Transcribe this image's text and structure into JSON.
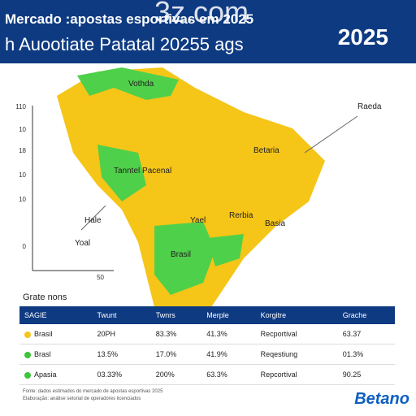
{
  "header": {
    "title": "Mercado :apostas esportivas em 2025",
    "subtitle": "h Auootiate Patatal 20255 ags",
    "badge": "2025",
    "watermark": "3z.com"
  },
  "map_labels": [
    "Vothda",
    "Raeda",
    "Betaria",
    "Tanntel Pacenal",
    "Hale",
    "Yoal",
    "Yael",
    "Rerbia",
    "Basia",
    "Brasil"
  ],
  "axis_ticks": [
    "110",
    "10",
    "18",
    "10",
    "10",
    "0",
    "50"
  ],
  "section": "Grate nons",
  "table": {
    "header": [
      "SAGIE",
      "Twunt",
      "Twnrs",
      "Merple",
      "Korgitre",
      "Grache"
    ],
    "rows": [
      [
        "Brasil",
        "20PH",
        "83.3%",
        "41.3%",
        "Recportival",
        "63.37"
      ],
      [
        "Brasl",
        "13.5%",
        "17.0%",
        "41.9%",
        "Reqestiung",
        "01.3%"
      ],
      [
        "Apasia",
        "03.33%",
        "200%",
        "63.3%",
        "Repcortival",
        "90.25"
      ]
    ]
  },
  "footer": [
    "Fonte: dados estimados do mercado de apostas esportivas 2025",
    "Elaboração: análise setorial de operadores licenciados"
  ],
  "logo": "Betano"
}
